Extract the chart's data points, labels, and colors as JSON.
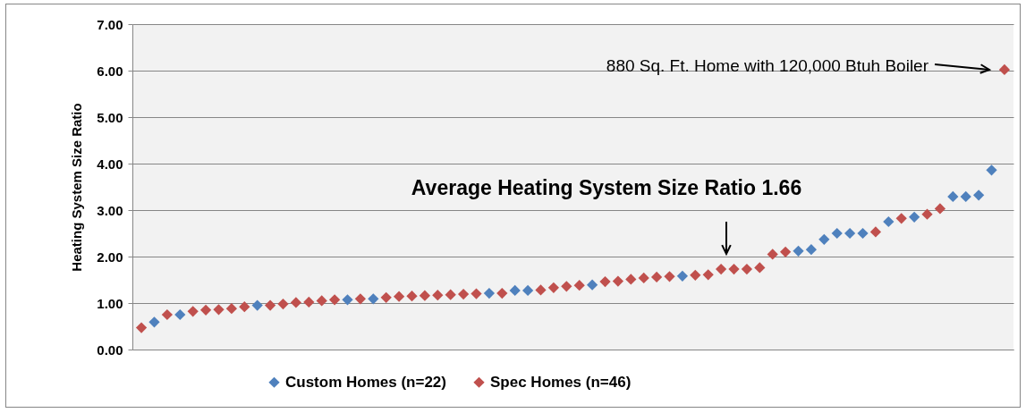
{
  "chart_data": {
    "type": "scatter",
    "ylabel": "Heating System Size Ratio",
    "categories": [
      null,
      null,
      null,
      null,
      null,
      null,
      null,
      null,
      null,
      null,
      null,
      null,
      null,
      null,
      null,
      null,
      null,
      null,
      null,
      null,
      null,
      null,
      null,
      null,
      null,
      null,
      null,
      null,
      null,
      null,
      null,
      null,
      null,
      null,
      null,
      null,
      null,
      null,
      null,
      null,
      null,
      null,
      null,
      null,
      null,
      null,
      null,
      null,
      null,
      null,
      null,
      null,
      null,
      null,
      null,
      null,
      null,
      null,
      null,
      null,
      null,
      null,
      null,
      null,
      null,
      null,
      null,
      null
    ],
    "series": [
      {
        "name": "Custom Homes (n=22)",
        "color": "#4f81bd",
        "values": [
          null,
          0.59,
          null,
          0.75,
          null,
          null,
          null,
          null,
          null,
          0.95,
          null,
          null,
          null,
          null,
          null,
          null,
          1.07,
          null,
          1.09,
          null,
          null,
          null,
          null,
          null,
          null,
          null,
          null,
          1.21,
          null,
          1.27,
          1.27,
          null,
          null,
          null,
          null,
          1.39,
          null,
          null,
          null,
          null,
          null,
          null,
          1.58,
          null,
          null,
          null,
          null,
          null,
          null,
          null,
          null,
          2.12,
          2.15,
          2.37,
          2.5,
          2.5,
          2.5,
          null,
          2.75,
          null,
          2.85,
          null,
          null,
          3.29,
          3.29,
          3.32,
          3.86,
          null
        ]
      },
      {
        "name": "Spec Homes (n=46)",
        "color": "#c0504d",
        "values": [
          0.47,
          null,
          0.75,
          null,
          0.82,
          0.85,
          0.86,
          0.88,
          0.92,
          null,
          0.95,
          0.98,
          1.01,
          1.02,
          1.05,
          1.07,
          null,
          1.09,
          null,
          1.12,
          1.14,
          1.15,
          1.16,
          1.17,
          1.18,
          1.19,
          1.2,
          null,
          1.21,
          null,
          null,
          1.28,
          1.33,
          1.36,
          1.38,
          null,
          1.46,
          1.47,
          1.51,
          1.54,
          1.56,
          1.57,
          null,
          1.6,
          1.61,
          1.73,
          1.73,
          1.73,
          1.76,
          2.05,
          2.1,
          null,
          null,
          null,
          null,
          null,
          null,
          2.53,
          null,
          2.82,
          null,
          2.91,
          3.03,
          null,
          null,
          null,
          null,
          6.02
        ]
      }
    ],
    "ylim": [
      0,
      7
    ],
    "yticks": [
      {
        "value": 0,
        "label": "0.00"
      },
      {
        "value": 1,
        "label": "1.00"
      },
      {
        "value": 2,
        "label": "2.00"
      },
      {
        "value": 3,
        "label": "3.00"
      },
      {
        "value": 4,
        "label": "4.00"
      },
      {
        "value": 5,
        "label": "5.00"
      },
      {
        "value": 6,
        "label": "6.00"
      },
      {
        "value": 7,
        "label": "7.00"
      }
    ],
    "grid": "y",
    "marker": "diamond",
    "legend": "bottom",
    "tick_labels": "y",
    "annotations": [
      "880 Sq. Ft. Home with 120,000 Btuh Boiler",
      "Average  Heating System Size Ratio 1.66"
    ]
  }
}
